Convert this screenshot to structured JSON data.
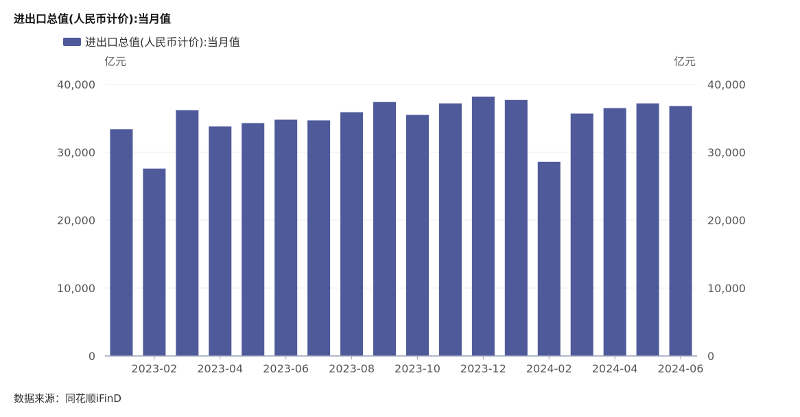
{
  "title": "进出口总值(人民币计价):当月值",
  "source": "数据来源：同花顺iFinD",
  "colors": {
    "bar": "#4f5a9b",
    "axis": "#9aa0b8",
    "grid": "#ececec"
  },
  "chart_data": {
    "type": "bar",
    "title": "进出口总值(人民币计价):当月值",
    "legend": {
      "label": "进出口总值(人民币计价):当月值",
      "placement": "top-left"
    },
    "y_unit_left": "亿元",
    "y_unit_right": "亿元",
    "ylim": [
      0,
      40000
    ],
    "y_ticks": [
      0,
      10000,
      20000,
      30000,
      40000
    ],
    "y_tick_labels": [
      "0",
      "10,000",
      "20,000",
      "30,000",
      "40,000"
    ],
    "categories": [
      "2023-01",
      "2023-02",
      "2023-03",
      "2023-04",
      "2023-05",
      "2023-06",
      "2023-07",
      "2023-08",
      "2023-09",
      "2023-10",
      "2023-11",
      "2023-12",
      "2024-01",
      "2024-02",
      "2024-03",
      "2024-04",
      "2024-05",
      "2024-06"
    ],
    "x_tick_labels": [
      "2023-02",
      "2023-04",
      "2023-06",
      "2023-08",
      "2023-10",
      "2023-12",
      "2024-02",
      "2024-04",
      "2024-06"
    ],
    "series": [
      {
        "name": "进出口总值(人民币计价):当月值",
        "values": [
          33400,
          27600,
          36200,
          33800,
          34300,
          34800,
          34700,
          35900,
          37400,
          35500,
          37200,
          38200,
          37700,
          28600,
          35700,
          36500,
          37200,
          36800
        ]
      }
    ],
    "grid": true
  }
}
